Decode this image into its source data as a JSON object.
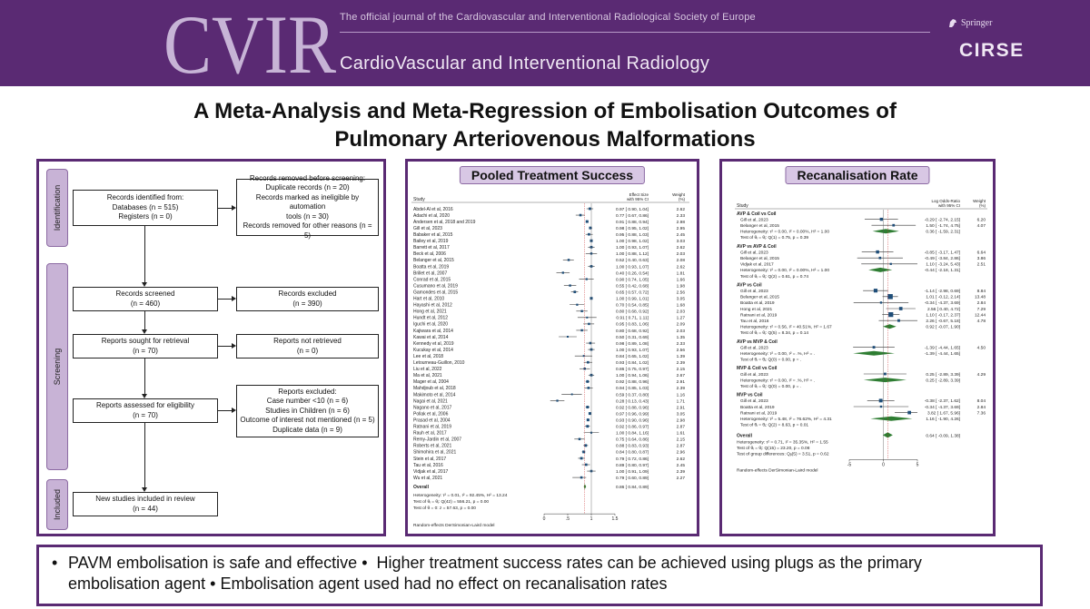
{
  "header": {
    "logo_text": "CVIR",
    "journal_line": "The official journal of the  Cardiovascular and Interventional Radiological Society of Europe",
    "journal_name": "CardioVascular and Interventional Radiology",
    "publisher": "Springer",
    "society": "CIRSE",
    "colors": {
      "band": "#5a2a73",
      "accent": "#c8b3d6"
    }
  },
  "title": {
    "line1": "A Meta-Analysis and Meta-Regression of Embolisation Outcomes of",
    "line2": "Pulmonary Arteriovenous Malformations"
  },
  "prisma": {
    "stages": [
      "Identification",
      "Screening",
      "Included"
    ],
    "identified": [
      "Records identified from:",
      "Databases (n = 515)",
      "Registers (n = 0)"
    ],
    "removed": [
      "Records removed before screening:",
      "Duplicate records (n = 20)",
      "Records marked as ineligible by automation",
      "tools (n = 30)",
      "Records removed for other reasons (n = 5)"
    ],
    "screened": [
      "Records screened",
      "(n = 460)"
    ],
    "excluded": [
      "Records excluded",
      "(n = 390)"
    ],
    "sought": [
      "Reports sought for retrieval",
      "(n = 70)"
    ],
    "not_retrieved": [
      "Reports not retrieved",
      "(n = 0)"
    ],
    "assessed": [
      "Reports assessed for eligibility",
      "(n = 70)"
    ],
    "reports_excluded": [
      "Reports excluded:",
      "Case number <10 (n = 6)",
      "Studies in Children (n = 6)",
      "Outcome of interest not mentioned (n = 5)",
      "Duplicate data (n = 9)"
    ],
    "included": [
      "New studies included in review",
      "(n = 44)"
    ]
  },
  "pooled": {
    "title": "Pooled Treatment Success",
    "headers": {
      "study": "Study",
      "effect": "Effect Size",
      "effect2": "with 95% CI",
      "weight": "Weight",
      "weight2": "(%)"
    },
    "studies": [
      {
        "name": "Abdel-Al et al, 2016",
        "es": 0.97,
        "lo": 0.9,
        "hi": 1.04,
        "w": "2.62"
      },
      {
        "name": "Adachi et al, 2020",
        "es": 0.77,
        "lo": 0.67,
        "hi": 0.86,
        "w": "2.33"
      },
      {
        "name": "Andersen et al, 2018 and 2019",
        "es": 0.91,
        "lo": 0.88,
        "hi": 0.94,
        "w": "2.98"
      },
      {
        "name": "Gill et al, 2023",
        "es": 0.98,
        "lo": 0.95,
        "hi": 1.02,
        "w": "2.95"
      },
      {
        "name": "Babaker et al, 2015",
        "es": 0.95,
        "lo": 0.88,
        "hi": 1.03,
        "w": "2.45"
      },
      {
        "name": "Bailey et al, 2019",
        "es": 1.0,
        "lo": 0.98,
        "hi": 1.02,
        "w": "3.03"
      },
      {
        "name": "Barrett et al, 2017",
        "es": 1.0,
        "lo": 0.93,
        "hi": 1.07,
        "w": "2.62"
      },
      {
        "name": "Beck et al, 2006",
        "es": 1.0,
        "lo": 0.88,
        "hi": 1.12,
        "w": "2.03"
      },
      {
        "name": "Belanger et al, 2015",
        "es": 0.52,
        "lo": 0.4,
        "hi": 0.63,
        "w": "2.08"
      },
      {
        "name": "Boatta et al, 2019",
        "es": 1.0,
        "lo": 0.93,
        "hi": 1.07,
        "w": "2.62"
      },
      {
        "name": "Brillet et al, 2007",
        "es": 0.4,
        "lo": 0.26,
        "hi": 0.54,
        "w": "1.81"
      },
      {
        "name": "Conrad et al, 2015",
        "es": 0.9,
        "lo": 0.74,
        "hi": 1.05,
        "w": "1.66"
      },
      {
        "name": "Cusumano et al, 2019",
        "es": 0.55,
        "lo": 0.42,
        "hi": 0.68,
        "w": "1.98"
      },
      {
        "name": "Gamondes et al, 2015",
        "es": 0.65,
        "lo": 0.57,
        "hi": 0.72,
        "w": "2.56"
      },
      {
        "name": "Hart et al, 2010",
        "es": 1.0,
        "lo": 0.99,
        "hi": 1.01,
        "w": "3.05"
      },
      {
        "name": "Hayashi et al, 2012",
        "es": 0.7,
        "lo": 0.54,
        "hi": 0.85,
        "w": "1.68"
      },
      {
        "name": "Hong et al, 2021",
        "es": 0.8,
        "lo": 0.68,
        "hi": 0.92,
        "w": "2.03"
      },
      {
        "name": "Hundt et al, 2012",
        "es": 0.91,
        "lo": 0.71,
        "hi": 1.11,
        "w": "1.27"
      },
      {
        "name": "Iguchi et al, 2020",
        "es": 0.95,
        "lo": 0.83,
        "hi": 1.06,
        "w": "2.09"
      },
      {
        "name": "Kajiwara et al, 2014",
        "es": 0.8,
        "lo": 0.68,
        "hi": 0.92,
        "w": "2.03"
      },
      {
        "name": "Kawai et al, 2014",
        "es": 0.5,
        "lo": 0.31,
        "hi": 0.69,
        "w": "1.35"
      },
      {
        "name": "Kennedy et al, 2019",
        "es": 0.98,
        "lo": 0.89,
        "hi": 1.08,
        "w": "2.33"
      },
      {
        "name": "Kucukay et al, 2014",
        "es": 1.0,
        "lo": 0.93,
        "hi": 1.07,
        "w": "2.56"
      },
      {
        "name": "Lee et al, 2018",
        "es": 0.84,
        "lo": 0.65,
        "hi": 1.02,
        "w": "1.39"
      },
      {
        "name": "Letourneau-Guillon, 2010",
        "es": 0.93,
        "lo": 0.84,
        "hi": 1.02,
        "w": "2.39"
      },
      {
        "name": "Liu et al, 2022",
        "es": 0.86,
        "lo": 0.75,
        "hi": 0.97,
        "w": "2.15"
      },
      {
        "name": "Ma et al, 2021",
        "es": 1.0,
        "lo": 0.94,
        "hi": 1.06,
        "w": "2.67"
      },
      {
        "name": "Mager et al, 2004",
        "es": 0.92,
        "lo": 0.88,
        "hi": 0.96,
        "w": "2.91"
      },
      {
        "name": "Mahdjoub et al, 2018",
        "es": 0.94,
        "lo": 0.85,
        "hi": 1.03,
        "w": "2.39"
      },
      {
        "name": "Makimoto et al, 2014",
        "es": 0.59,
        "lo": 0.37,
        "hi": 0.8,
        "w": "1.16"
      },
      {
        "name": "Nagai et al, 2021",
        "es": 0.28,
        "lo": 0.13,
        "hi": 0.43,
        "w": "1.71"
      },
      {
        "name": "Nagano et al, 2017",
        "es": 0.92,
        "lo": 0.88,
        "hi": 0.96,
        "w": "2.91"
      },
      {
        "name": "Pollak et al, 2006",
        "es": 0.97,
        "lo": 0.96,
        "hi": 0.99,
        "w": "3.05"
      },
      {
        "name": "Prasad et al, 2004",
        "es": 0.93,
        "lo": 0.9,
        "hi": 0.96,
        "w": "2.98"
      },
      {
        "name": "Ratnani et al, 2019",
        "es": 0.92,
        "lo": 0.86,
        "hi": 0.97,
        "w": "2.87"
      },
      {
        "name": "Rauh et al, 2017",
        "es": 1.0,
        "lo": 0.84,
        "hi": 1.16,
        "w": "1.61"
      },
      {
        "name": "Remy-Jardin et al, 2007",
        "es": 0.75,
        "lo": 0.64,
        "hi": 0.86,
        "w": "2.15"
      },
      {
        "name": "Roberts et al, 2021",
        "es": 0.88,
        "lo": 0.83,
        "hi": 0.93,
        "w": "2.87"
      },
      {
        "name": "Shimohira et al, 2021",
        "es": 0.84,
        "lo": 0.8,
        "hi": 0.87,
        "w": "2.96"
      },
      {
        "name": "Stein et al, 2017",
        "es": 0.79,
        "lo": 0.72,
        "hi": 0.86,
        "w": "2.62"
      },
      {
        "name": "Tau et al, 2016",
        "es": 0.89,
        "lo": 0.8,
        "hi": 0.97,
        "w": "2.45"
      },
      {
        "name": "Vidjak et al, 2017",
        "es": 1.0,
        "lo": 0.91,
        "hi": 1.09,
        "w": "2.39"
      },
      {
        "name": "Wu et al, 2021",
        "es": 0.79,
        "lo": 0.6,
        "hi": 0.89,
        "w": "2.27"
      }
    ],
    "overall": {
      "label": "Overall",
      "es": 0.86,
      "lo": 0.84,
      "hi": 0.89,
      "w": "",
      "text": "0.86 [ 0.84,  0.89]"
    },
    "stats": [
      "Heterogeneity: τ² = 0.01, I² = 92.45%, H² = 13.24",
      "Test of θᵢ = θⱼ: Q(42) = 556.21, p = 0.00",
      "Test of θ = 0: z = 57.63, p = 0.00"
    ],
    "model": "Random-effects DerSimonian-Laird model",
    "axis_ticks": [
      "0",
      ".5",
      "1",
      "1.5"
    ],
    "xlim": [
      0,
      1.5
    ]
  },
  "recan": {
    "title": "Recanalisation Rate",
    "headers": {
      "study": "Study",
      "effect": "Log Odds-Ratio",
      "effect2": "with 95% CI",
      "weight": "Weight",
      "weight2": "(%)"
    },
    "groups": [
      {
        "label": "AVP & Coil vs Coil",
        "studies": [
          {
            "name": "Gill et al, 2023",
            "es": -0.29,
            "lo": -2.74,
            "hi": 2.15,
            "text": "-0.29 [ -2.74,  2.15]",
            "w": "6.20"
          },
          {
            "name": "Belanger et al, 2015",
            "es": 1.5,
            "lo": -1.74,
            "hi": 4.75,
            "text": "1.50 [ -1.74,  4.75]",
            "w": "4.07"
          }
        ],
        "het": "Heterogeneity: τ² = 0.00, I² = 0.00%, H² = 1.00",
        "sub": {
          "es": 0.36,
          "lo": -1.59,
          "hi": 2.31,
          "text": "0.36 [ -1.59,  2.31]"
        },
        "test": "Test of θᵢ = θⱼ: Q(1) = 0.75, p = 0.39"
      },
      {
        "label": "AVP vs AVP & Coil",
        "studies": [
          {
            "name": "Gill et al, 2023",
            "es": -0.85,
            "lo": -3.17,
            "hi": 1.47,
            "text": "-0.85 [ -3.17,  1.47]",
            "w": "6.64"
          },
          {
            "name": "Belanger et al, 2015",
            "es": -0.49,
            "lo": -3.84,
            "hi": 2.86,
            "text": "-0.49 [ -3.84,  2.86]",
            "w": "3.86"
          },
          {
            "name": "Vidjak et al, 2017",
            "es": 1.1,
            "lo": -3.24,
            "hi": 5.43,
            "text": "1.10 [ -3.24,  5.43]",
            "w": "2.51"
          }
        ],
        "het": "Heterogeneity: τ² = 0.00, I² = 0.00%, H² = 1.00",
        "sub": {
          "es": -0.44,
          "lo": -2.18,
          "hi": 1.31,
          "text": "-0.44 [ -2.18,  1.31]"
        },
        "test": "Test of θᵢ = θⱼ: Q(2) = 0.61, p = 0.74"
      },
      {
        "label": "AVP vs Coil",
        "studies": [
          {
            "name": "Gill et al, 2023",
            "es": -1.14,
            "lo": -2.98,
            "hi": 0.69,
            "text": "-1.14 [ -2.98,  0.69]",
            "w": "8.84"
          },
          {
            "name": "Belanger et al, 2015",
            "es": 1.01,
            "lo": -0.12,
            "hi": 2.14,
            "text": "1.01 [ -0.12,  2.14]",
            "w": "13.48"
          },
          {
            "name": "Boatta et al, 2019",
            "es": -0.34,
            "lo": -4.37,
            "hi": 3.69,
            "text": "-0.34 [ -4.37,  3.69]",
            "w": "2.84"
          },
          {
            "name": "Hong et al, 2021",
            "es": 2.56,
            "lo": 0.4,
            "hi": 4.72,
            "text": "2.56 [ 0.40,  4.72]",
            "w": "7.29"
          },
          {
            "name": "Ratnani et al, 2019",
            "es": 1.1,
            "lo": -0.17,
            "hi": 2.37,
            "text": "1.10 [ -0.17,  2.37]",
            "w": "12.44"
          },
          {
            "name": "Tau et al, 2016",
            "es": 2.26,
            "lo": -0.67,
            "hi": 5.18,
            "text": "2.26 [ -0.67,  5.18]",
            "w": "4.78"
          }
        ],
        "het": "Heterogeneity: τ² = 0.56, I² = 40.51%, H² = 1.67",
        "sub": {
          "es": 0.92,
          "lo": -0.07,
          "hi": 1.9,
          "text": "0.92 [ -0.07,  1.90]"
        },
        "test": "Test of θᵢ = θⱼ: Q(5) = 8.34, p = 0.14"
      },
      {
        "label": "AVP vs MVP & Coil",
        "studies": [
          {
            "name": "Gill et al, 2023",
            "es": -1.39,
            "lo": -4.44,
            "hi": 1.65,
            "text": "-1.39 [ -4.44,  1.65]",
            "w": "4.50"
          }
        ],
        "het": "Heterogeneity: τ² = 0.00, I² = .%, H² = .",
        "sub": {
          "es": -1.39,
          "lo": -4.44,
          "hi": 1.65,
          "text": "-1.39 [ -4.44,  1.65]"
        },
        "test": "Test of θᵢ = θⱼ: Q(0) = 0.00, p = ."
      },
      {
        "label": "MVP & Coil vs Coil",
        "studies": [
          {
            "name": "Gill et al, 2023",
            "es": 0.25,
            "lo": -2.89,
            "hi": 3.39,
            "text": "0.25 [ -2.89,  3.39]",
            "w": "4.29"
          }
        ],
        "het": "Heterogeneity: τ² = 0.00, I² = .%, H² = .",
        "sub": {
          "es": 0.25,
          "lo": -2.89,
          "hi": 3.39,
          "text": "0.25 [ -2.89,  3.39]"
        },
        "test": "Test of θᵢ = θⱼ: Q(0) = 0.00, p = ."
      },
      {
        "label": "MVP vs Coil",
        "studies": [
          {
            "name": "Gill et al, 2023",
            "es": -0.38,
            "lo": -2.37,
            "hi": 1.62,
            "text": "-0.38 [ -2.37,  1.62]",
            "w": "8.04"
          },
          {
            "name": "Boatta et al, 2019",
            "es": -0.34,
            "lo": -4.37,
            "hi": 3.69,
            "text": "-0.34 [ -4.37,  3.69]",
            "w": "2.84"
          },
          {
            "name": "Ratnani et al, 2019",
            "es": 3.82,
            "lo": 1.67,
            "hi": 5.96,
            "text": "3.82 [ 1.67,  5.96]",
            "w": "7.36"
          }
        ],
        "het": "Heterogeneity: τ² = 5.48, I² = 76.62%, H² = 4.31",
        "sub": {
          "es": 1.16,
          "lo": -1.9,
          "hi": 4.26,
          "text": "1.16 [ -1.90,  4.26]"
        },
        "test": "Test of θᵢ = θⱼ: Q(2) = 8.63, p = 0.01"
      }
    ],
    "overall": {
      "label": "Overall",
      "es": 0.64,
      "lo": -0.09,
      "hi": 1.38,
      "text": "0.64 [ -0.09,  1.38]"
    },
    "stats": [
      "Heterogeneity: τ² = 0.71, I² = 35.35%, H² = 1.55",
      "Test of θᵢ = θⱼ: Q(15) = 23.20, p = 0.08",
      "Test of group differences: Qᵦ(5) = 3.51, p = 0.62"
    ],
    "model": "Random-effects DerSimonian-Laird model",
    "axis_ticks": [
      "-5",
      "0",
      "5"
    ],
    "xlim": [
      -5,
      5
    ]
  },
  "summary": {
    "items": [
      "PAVM embolisation is safe and effective",
      "Higher treatment success rates can be achieved using plugs as the primary",
      "embolisation agent",
      "Embolisation agent used had no effect on recanalisation rates"
    ],
    "bullet": "•"
  }
}
